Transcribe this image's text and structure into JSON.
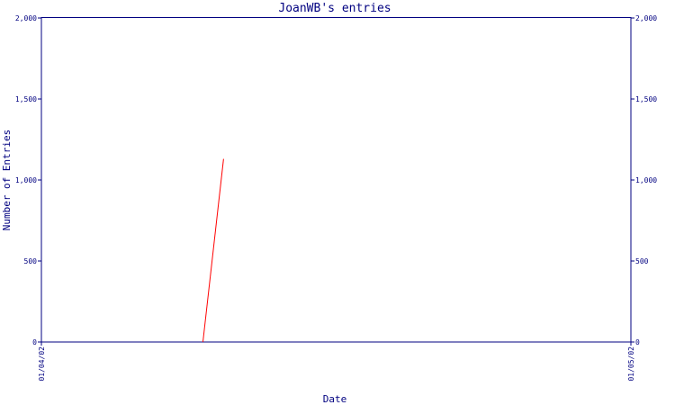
{
  "chart_data": {
    "type": "line",
    "title": "JoanWB's entries",
    "xlabel": "Date",
    "ylabel": "Number of Entries",
    "x_ticks": [
      "01/04/02",
      "01/05/02"
    ],
    "y_ticks": [
      0,
      500,
      1000,
      1500,
      2000
    ],
    "y_tick_labels": [
      "0",
      "500",
      "1,000",
      "1,500",
      "2,000"
    ],
    "ylim": [
      0,
      2000
    ],
    "grid": false,
    "axis_color": "#000080",
    "series": [
      {
        "color": "#ff0000",
        "points": [
          {
            "x": 0.274,
            "y": 0
          },
          {
            "x": 0.309,
            "y": 1130
          }
        ]
      }
    ]
  }
}
